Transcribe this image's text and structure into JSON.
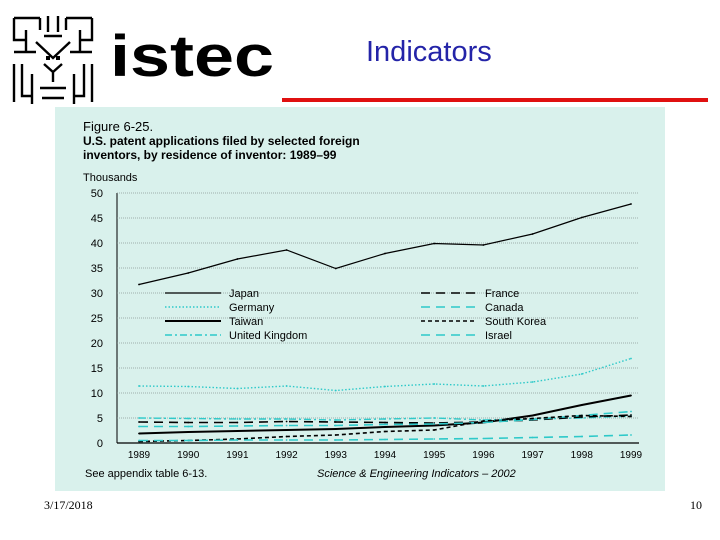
{
  "slide": {
    "title": "Indicators",
    "logo_text": "istec",
    "date": "3/17/2018",
    "page_number": "10",
    "title_color": "#2424a8",
    "rule_color": "#e01010",
    "figure_bg": "#d9f1ec"
  },
  "chart_data": {
    "type": "line",
    "figure_label": "Figure 6-25.",
    "title_line1": "U.S. patent applications filed by selected foreign",
    "title_line2": "inventors, by residence of inventor: 1989–99",
    "ylabel": "Thousands",
    "xlabel": "",
    "source_left": "See appendix table 6-13.",
    "source_right": "Science & Engineering Indicators – 2002",
    "ylim": [
      0,
      50
    ],
    "yticks": [
      0,
      5,
      10,
      15,
      20,
      25,
      30,
      35,
      40,
      45,
      50
    ],
    "grid": "horizontal",
    "legend_position": "center",
    "x": [
      "1989",
      "1990",
      "1991",
      "1992",
      "1993",
      "1994",
      "1995",
      "1996",
      "1997",
      "1998",
      "1999"
    ],
    "series": [
      {
        "name": "Japan",
        "style": "solid-thin",
        "color": "#000000",
        "values": [
          31.7,
          34.0,
          36.8,
          38.6,
          34.9,
          37.9,
          39.9,
          39.6,
          41.8,
          45.1,
          47.8
        ]
      },
      {
        "name": "Germany",
        "style": "dotted",
        "color": "#2ec9c9",
        "values": [
          11.4,
          11.3,
          10.9,
          11.4,
          10.5,
          11.3,
          11.8,
          11.4,
          12.2,
          13.8,
          16.9
        ]
      },
      {
        "name": "Taiwan",
        "style": "solid-thick",
        "color": "#000000",
        "values": [
          1.9,
          2.2,
          2.4,
          2.6,
          2.8,
          3.2,
          3.5,
          4.1,
          5.5,
          7.6,
          9.5
        ]
      },
      {
        "name": "United Kingdom",
        "style": "dash-dot",
        "color": "#2ec9c9",
        "values": [
          5.0,
          4.9,
          4.8,
          4.8,
          4.6,
          4.8,
          5.0,
          4.6,
          4.8,
          5.0,
          5.4
        ]
      },
      {
        "name": "France",
        "style": "long-dash",
        "color": "#000000",
        "values": [
          4.2,
          4.1,
          4.1,
          4.3,
          4.2,
          4.1,
          4.0,
          4.2,
          4.6,
          5.2,
          5.6
        ]
      },
      {
        "name": "Canada",
        "style": "long-dash",
        "color": "#2ec9c9",
        "values": [
          3.3,
          3.3,
          3.4,
          3.5,
          3.5,
          3.7,
          3.8,
          4.1,
          4.7,
          5.5,
          6.3
        ]
      },
      {
        "name": "South Korea",
        "style": "dashed",
        "color": "#000000",
        "values": [
          0.3,
          0.5,
          0.8,
          1.3,
          1.6,
          2.3,
          2.6,
          4.4,
          4.9,
          5.5,
          5.3
        ]
      },
      {
        "name": "Israel",
        "style": "long-dash",
        "color": "#2ec9c9",
        "values": [
          0.5,
          0.5,
          0.6,
          0.6,
          0.6,
          0.7,
          0.8,
          0.9,
          1.1,
          1.3,
          1.6
        ]
      }
    ]
  }
}
